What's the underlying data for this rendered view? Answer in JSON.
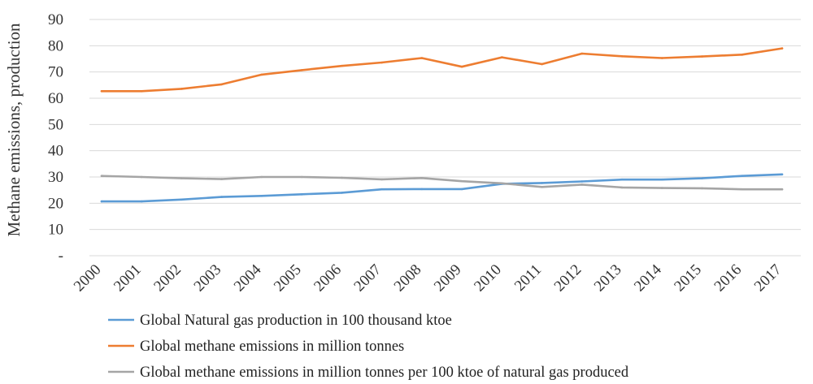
{
  "chart_data": {
    "type": "line",
    "ylabel": "Methane emissions, production",
    "ylim": [
      0,
      90
    ],
    "y_ticks": [
      {
        "value": 0,
        "label": "-"
      },
      {
        "value": 10,
        "label": "10"
      },
      {
        "value": 20,
        "label": "20"
      },
      {
        "value": 30,
        "label": "30"
      },
      {
        "value": 40,
        "label": "40"
      },
      {
        "value": 50,
        "label": "50"
      },
      {
        "value": 60,
        "label": "60"
      },
      {
        "value": 70,
        "label": "70"
      },
      {
        "value": 80,
        "label": "80"
      },
      {
        "value": 90,
        "label": "90"
      }
    ],
    "grid": true,
    "legend_position": "bottom",
    "categories": [
      "2000",
      "2001",
      "2002",
      "2003",
      "2004",
      "2005",
      "2006",
      "2007",
      "2008",
      "2009",
      "2010",
      "2011",
      "2012",
      "2013",
      "2014",
      "2015",
      "2016",
      "2017"
    ],
    "series": [
      {
        "name": "Global Natural gas production in 100 thousand ktoe",
        "color": "#5b9bd5",
        "values": [
          20.7,
          20.7,
          21.4,
          22.4,
          22.8,
          23.4,
          24.0,
          25.3,
          25.4,
          25.4,
          27.4,
          27.7,
          28.3,
          29.0,
          29.0,
          29.5,
          30.4,
          31.0
        ]
      },
      {
        "name": "Global methane emissions in million tonnes",
        "color": "#ed7d31",
        "values": [
          62.7,
          62.7,
          63.6,
          65.3,
          69.0,
          70.7,
          72.3,
          73.6,
          75.3,
          72.0,
          75.6,
          73.0,
          77.0,
          76.0,
          75.3,
          75.9,
          76.6,
          79.0
        ]
      },
      {
        "name": "Global methane emissions in million tonnes per 100 ktoe of natural gas produced",
        "color": "#a5a5a5",
        "values": [
          30.4,
          30.0,
          29.5,
          29.2,
          30.0,
          30.0,
          29.7,
          29.1,
          29.6,
          28.4,
          27.6,
          26.2,
          27.1,
          26.0,
          25.8,
          25.7,
          25.3,
          25.3
        ]
      }
    ]
  }
}
